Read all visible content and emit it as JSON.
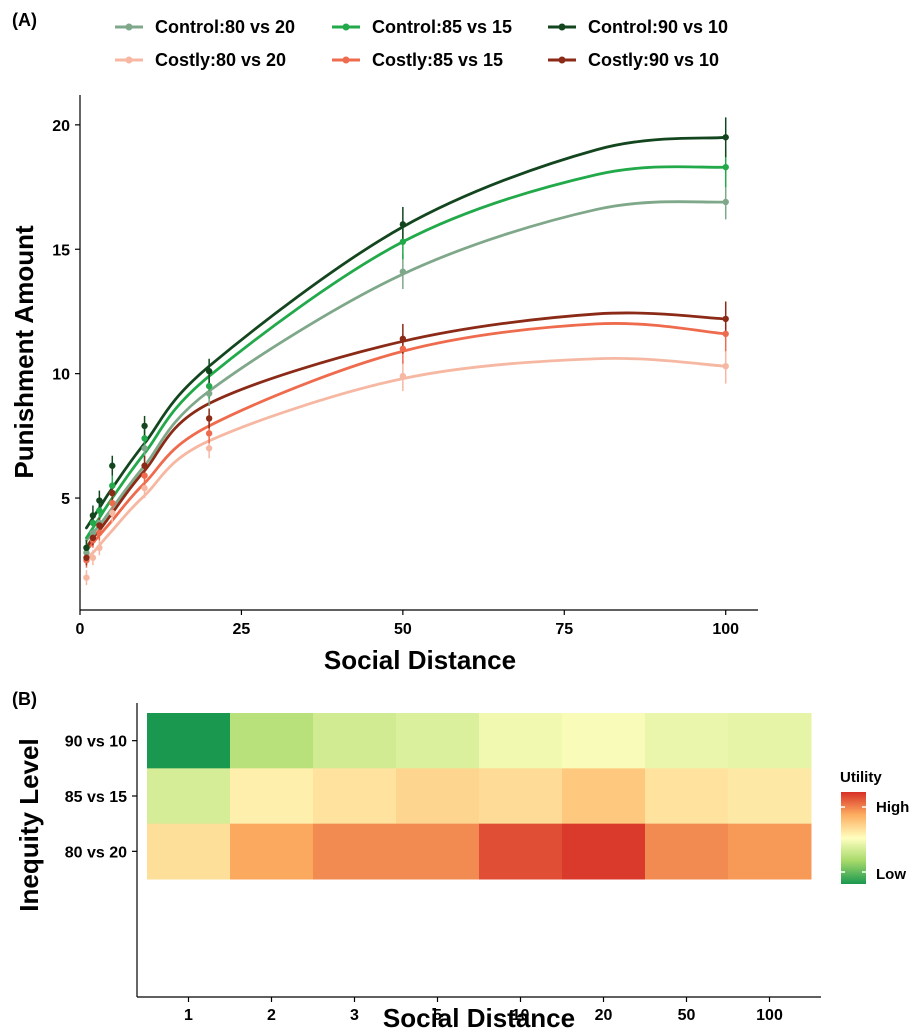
{
  "panel_a_label": "(A)",
  "panel_b_label": "(B)",
  "chart_data": [
    {
      "type": "line",
      "xlabel": "Social Distance",
      "ylabel": "Punishment Amount",
      "xlim": [
        0,
        105
      ],
      "ylim": [
        0.5,
        21.2
      ],
      "x_ticks": [
        0,
        25,
        50,
        75,
        100
      ],
      "y_ticks": [
        5,
        10,
        15,
        20
      ],
      "x": [
        1,
        2,
        3,
        5,
        10,
        20,
        50,
        100
      ],
      "legend_position": "top",
      "series": [
        {
          "name": "Control:80 vs 20",
          "color": "#7fa88a",
          "values": [
            2.8,
            3.6,
            4.0,
            5.2,
            7.0,
            9.2,
            14.1,
            16.9
          ],
          "errors": [
            0.3,
            0.3,
            0.4,
            0.4,
            0.5,
            0.5,
            0.7,
            0.7
          ]
        },
        {
          "name": "Control:85 vs 15",
          "color": "#22a94a",
          "values": [
            3.0,
            4.0,
            4.5,
            5.5,
            7.4,
            9.5,
            15.3,
            18.3
          ],
          "errors": [
            0.3,
            0.4,
            0.4,
            0.4,
            0.5,
            0.5,
            0.7,
            0.8
          ]
        },
        {
          "name": "Control:90 vs 10",
          "color": "#13461f",
          "values": [
            3.0,
            4.3,
            4.9,
            6.3,
            7.9,
            10.1,
            16.0,
            19.5
          ],
          "errors": [
            0.3,
            0.4,
            0.4,
            0.4,
            0.4,
            0.5,
            0.7,
            0.8
          ]
        },
        {
          "name": "Costly:80 vs 20",
          "color": "#f6b8a2",
          "values": [
            1.8,
            2.6,
            3.0,
            4.4,
            5.4,
            7.0,
            9.9,
            10.3
          ],
          "errors": [
            0.3,
            0.3,
            0.3,
            0.4,
            0.4,
            0.4,
            0.6,
            0.7
          ]
        },
        {
          "name": "Costly:85 vs 15",
          "color": "#ee6b4d",
          "values": [
            2.5,
            3.3,
            3.6,
            4.8,
            5.9,
            7.6,
            11.0,
            11.6
          ],
          "errors": [
            0.3,
            0.3,
            0.3,
            0.4,
            0.4,
            0.4,
            0.6,
            0.7
          ]
        },
        {
          "name": "Costly:90 vs 10",
          "color": "#8a2a17",
          "values": [
            2.6,
            3.4,
            3.9,
            5.2,
            6.3,
            8.2,
            11.4,
            12.2
          ],
          "errors": [
            0.3,
            0.3,
            0.3,
            0.4,
            0.4,
            0.4,
            0.6,
            0.7
          ]
        }
      ],
      "fit_curves": [
        {
          "series": "Control:80 vs 20",
          "values": [
            3.3,
            3.6,
            3.9,
            4.6,
            6.3,
            9.3,
            14.0,
            16.6,
            16.9
          ]
        },
        {
          "series": "Control:85 vs 15",
          "values": [
            3.4,
            3.8,
            4.2,
            5.0,
            6.8,
            9.9,
            15.3,
            18.0,
            18.3
          ]
        },
        {
          "series": "Control:90 vs 10",
          "values": [
            3.8,
            4.2,
            4.6,
            5.4,
            7.2,
            10.3,
            15.9,
            19.0,
            19.5
          ]
        },
        {
          "series": "Costly:80 vs 20",
          "values": [
            2.6,
            2.8,
            3.1,
            3.7,
            5.1,
            7.3,
            9.8,
            10.6,
            10.3
          ]
        },
        {
          "series": "Costly:85 vs 15",
          "values": [
            2.9,
            3.2,
            3.5,
            4.1,
            5.6,
            7.9,
            10.9,
            12.0,
            11.6
          ]
        },
        {
          "series": "Costly:90 vs 10",
          "values": [
            3.0,
            3.4,
            3.7,
            4.4,
            6.1,
            8.8,
            11.3,
            12.4,
            12.2
          ]
        }
      ],
      "fit_x": [
        1,
        2,
        3,
        5,
        10,
        20,
        50,
        80,
        100
      ]
    },
    {
      "type": "heatmap",
      "xlabel": "Social Distance",
      "ylabel": "Inequity Level",
      "categories": [
        "1",
        "2",
        "3",
        "5",
        "10",
        "20",
        "50",
        "100"
      ],
      "rows": [
        "90 vs 10",
        "85 vs 15",
        "80 vs 20"
      ],
      "utility": [
        [
          0.0,
          0.3,
          0.37,
          0.4,
          0.46,
          0.48,
          0.44,
          0.43
        ],
        [
          0.38,
          0.55,
          0.59,
          0.63,
          0.61,
          0.67,
          0.59,
          0.57
        ],
        [
          0.6,
          0.76,
          0.82,
          0.82,
          0.94,
          0.98,
          0.82,
          0.79
        ]
      ],
      "colorbar": {
        "title": "Utility",
        "high_label": "High",
        "low_label": "Low",
        "colors": [
          "#1a9850",
          "#a6d96a",
          "#ffffbf",
          "#fdae61",
          "#d73027"
        ]
      },
      "grid": false
    }
  ]
}
